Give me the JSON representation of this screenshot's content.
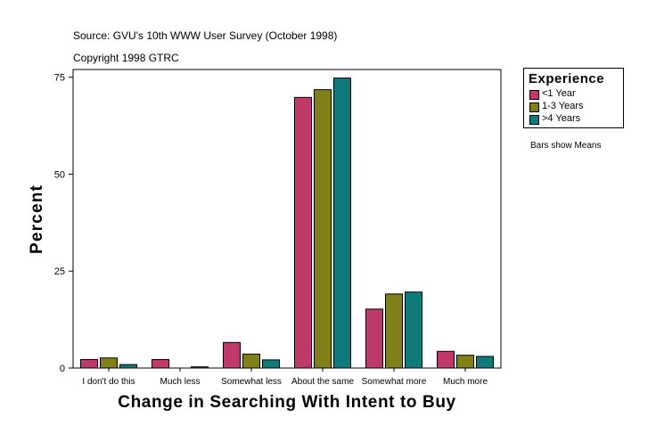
{
  "source": "Source: GVU's 10th WWW User Survey (October 1998)",
  "copyright": "Copyright 1998 GTRC",
  "note": "Bars show Means",
  "chart_data": {
    "type": "bar",
    "xlabel": "Change in Searching With Intent to Buy",
    "ylabel": "Percent",
    "ylim": [
      0,
      77
    ],
    "yticks": [
      0,
      25,
      50,
      75
    ],
    "categories": [
      "I don't do this",
      "Much less",
      "Somewhat less",
      "About the same",
      "Somewhat more",
      "Much more"
    ],
    "legend": {
      "title": "Experience",
      "position": "top-right"
    },
    "series": [
      {
        "name": "<1 Year",
        "color": "#c0396b",
        "values": [
          2.2,
          2.2,
          6.6,
          69.8,
          15.2,
          4.3
        ]
      },
      {
        "name": "1-3 Years",
        "color": "#808018",
        "values": [
          2.6,
          0,
          3.6,
          71.8,
          19.1,
          3.3
        ]
      },
      {
        "name": ">4 Years",
        "color": "#0f7a7a",
        "values": [
          0.9,
          0.3,
          2.1,
          74.8,
          19.6,
          3.0
        ]
      }
    ]
  }
}
